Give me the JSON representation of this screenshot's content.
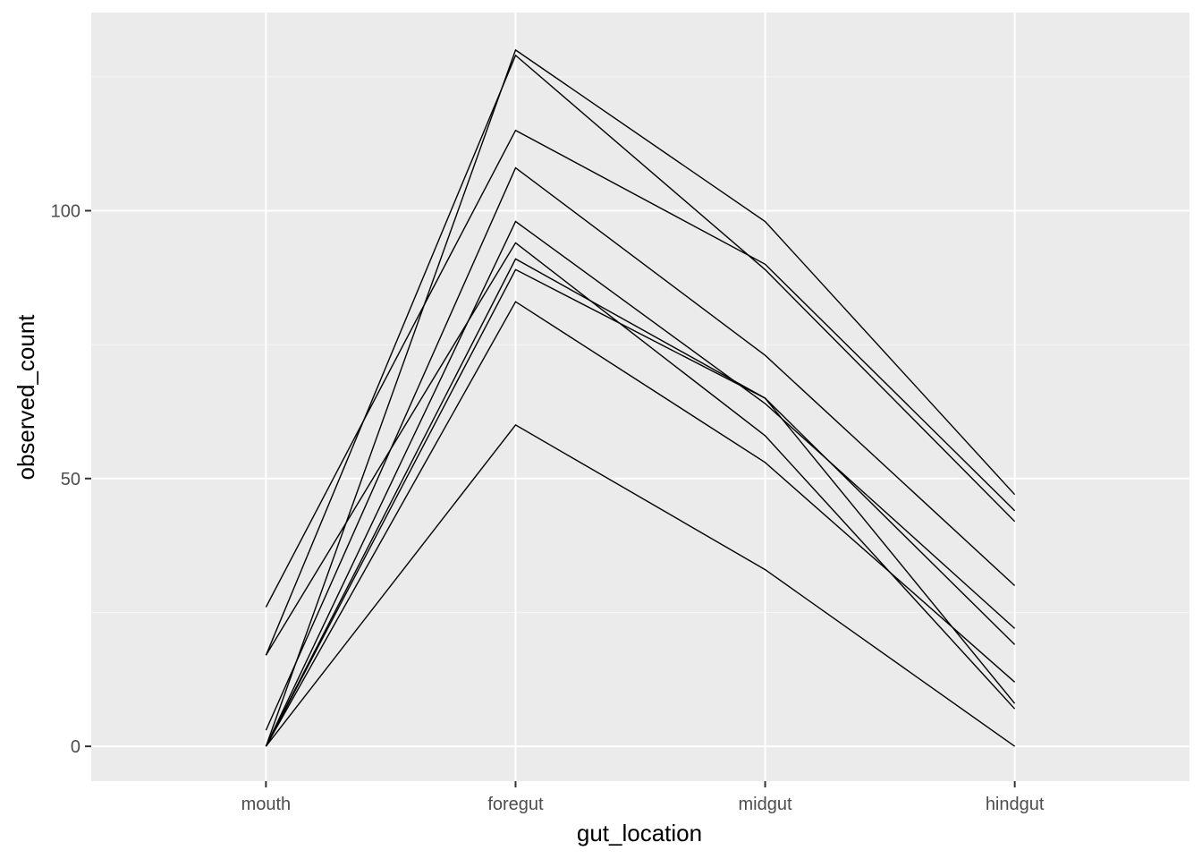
{
  "chart_data": {
    "type": "line",
    "title": "",
    "xlabel": "gut_location",
    "ylabel": "observed_count",
    "categories": [
      "mouth",
      "foregut",
      "midgut",
      "hindgut"
    ],
    "y_ticks": [
      0,
      50,
      100
    ],
    "ylim": [
      -6.5,
      137
    ],
    "grid": true,
    "legend": "none",
    "colors": {
      "panel_background": "#ebebeb",
      "grid_major": "#ffffff",
      "grid_minor": "#f5f5f5",
      "line": "#000000",
      "tick_label": "#4d4d4d"
    },
    "series": [
      {
        "values": [
          0,
          130,
          98,
          47
        ]
      },
      {
        "values": [
          17,
          129,
          89,
          42
        ]
      },
      {
        "values": [
          26,
          115,
          90,
          44
        ]
      },
      {
        "values": [
          3,
          108,
          73,
          30
        ]
      },
      {
        "values": [
          0,
          98,
          64,
          22
        ]
      },
      {
        "values": [
          17,
          94,
          58,
          7
        ]
      },
      {
        "values": [
          0,
          91,
          65,
          19
        ]
      },
      {
        "values": [
          0,
          89,
          65,
          8
        ]
      },
      {
        "values": [
          0,
          83,
          53,
          12
        ]
      },
      {
        "values": [
          0,
          60,
          33,
          0
        ]
      }
    ]
  }
}
